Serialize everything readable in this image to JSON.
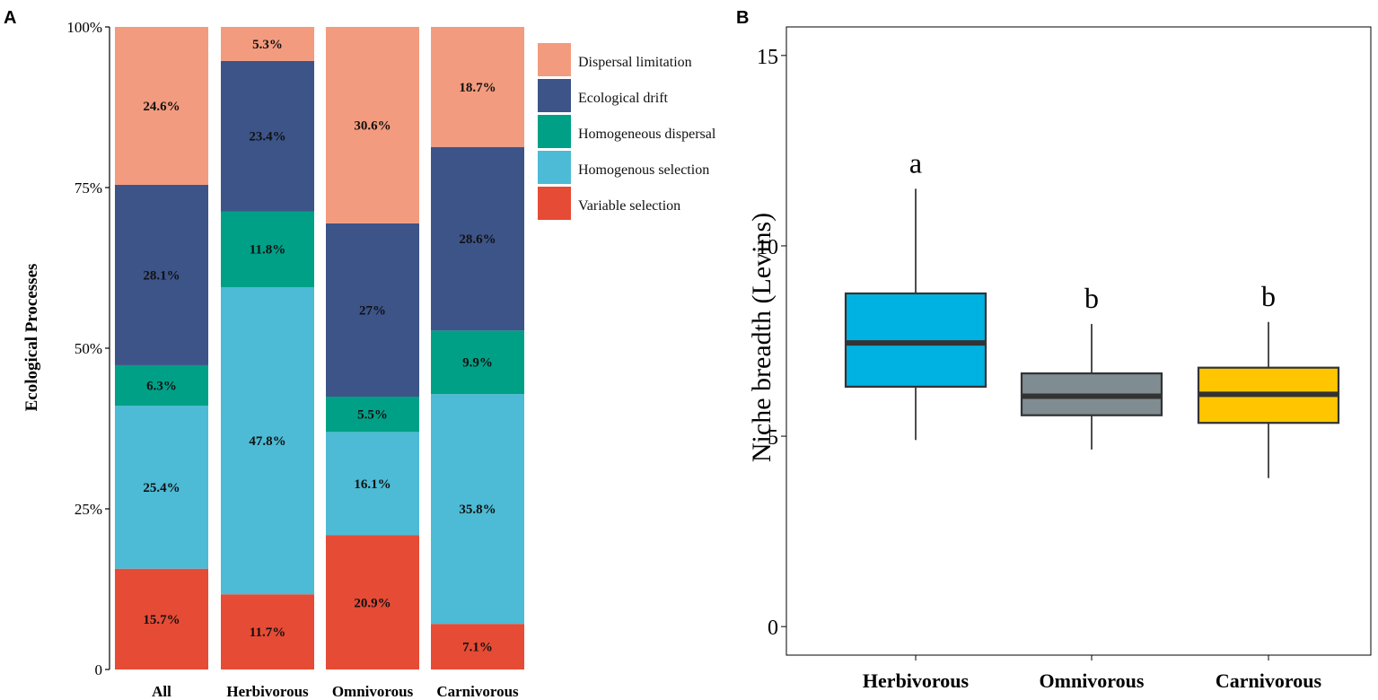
{
  "chart_data": [
    {
      "panel": "A",
      "type": "bar",
      "stacked": true,
      "ylabel": "Ecological Processes",
      "xlabel": "",
      "ylim": [
        0,
        100
      ],
      "yticks": [
        "0",
        "25%",
        "50%",
        "75%",
        "100%"
      ],
      "categories": [
        "All",
        "Herbivorous",
        "Omnivorous",
        "Carnivorous"
      ],
      "series": [
        {
          "name": "Variable selection",
          "color": "#e64b35",
          "values": [
            15.7,
            11.7,
            20.9,
            7.1
          ],
          "labels": [
            "15.7%",
            "11.7%",
            "20.9%",
            "7.1%"
          ]
        },
        {
          "name": "Homogenous selection",
          "color": "#4dbbd5",
          "values": [
            25.4,
            47.8,
            16.1,
            35.8
          ],
          "labels": [
            "25.4%",
            "47.8%",
            "16.1%",
            "35.8%"
          ]
        },
        {
          "name": "Homogeneous dispersal",
          "color": "#00a087",
          "values": [
            6.3,
            11.8,
            5.5,
            9.9
          ],
          "labels": [
            "6.3%",
            "11.8%",
            "5.5%",
            "9.9%"
          ]
        },
        {
          "name": "Ecological drift",
          "color": "#3c5488",
          "values": [
            28.1,
            23.4,
            27.0,
            28.6
          ],
          "labels": [
            "28.1%",
            "23.4%",
            "27%",
            "28.6%"
          ]
        },
        {
          "name": "Dispersal limitation",
          "color": "#f39b7f",
          "values": [
            24.6,
            5.3,
            30.6,
            18.7
          ],
          "labels": [
            "24.6%",
            "5.3%",
            "30.6%",
            "18.7%"
          ]
        }
      ],
      "legend_order": [
        "Dispersal limitation",
        "Ecological drift",
        "Homogeneous dispersal",
        "Homogenous selection",
        "Variable selection"
      ],
      "legend_position": "right"
    },
    {
      "panel": "B",
      "type": "boxplot",
      "ylabel": "Niche breadth (Levins)",
      "xlabel": "",
      "ylim": [
        -0.75,
        15.75
      ],
      "yticks": [
        "0",
        "5",
        "10",
        "15"
      ],
      "categories": [
        "Herbivorous",
        "Omnivorous",
        "Carnivorous"
      ],
      "boxes": [
        {
          "name": "Herbivorous",
          "color": "#00b2e2",
          "min": 4.9,
          "q1": 6.3,
          "median": 7.45,
          "q3": 8.75,
          "max": 11.5,
          "group_letter": "a"
        },
        {
          "name": "Omnivorous",
          "color": "#7f8c92",
          "min": 4.65,
          "q1": 5.55,
          "median": 6.05,
          "q3": 6.65,
          "max": 7.95,
          "group_letter": "b"
        },
        {
          "name": "Carnivorous",
          "color": "#ffc600",
          "min": 3.9,
          "q1": 5.35,
          "median": 6.1,
          "q3": 6.8,
          "max": 8.0,
          "group_letter": "b"
        }
      ]
    }
  ],
  "panel_letters": [
    "A",
    "B"
  ]
}
